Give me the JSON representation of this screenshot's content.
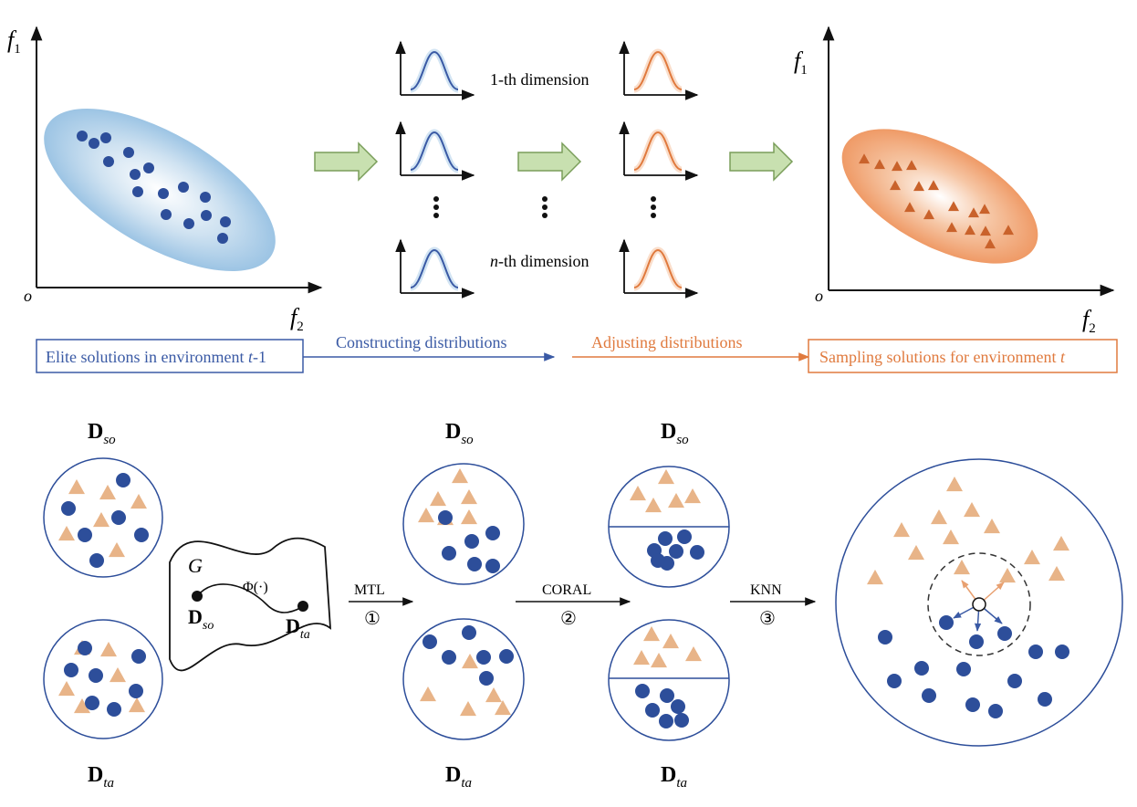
{
  "top": {
    "left_plot": {
      "y_axis_var": "f",
      "y_axis_sub": "1",
      "x_axis_var": "f",
      "x_axis_sub": "2",
      "origin": "o"
    },
    "right_plot": {
      "y_axis_var": "f",
      "y_axis_sub": "1",
      "x_axis_var": "f",
      "x_axis_sub": "2",
      "origin": "o"
    },
    "dimension_labels": {
      "first": "1-th dimension",
      "last_var": "n",
      "last_rest": "-th dimension"
    },
    "steps": {
      "box1_prefix": "Elite solutions in environment ",
      "box1_var": "t",
      "box1_suffix": "-1",
      "constructing": "Constructing distributions",
      "adjusting": "Adjusting distributions",
      "box2_prefix": "Sampling solutions for  environment ",
      "box2_var": "t"
    },
    "colors": {
      "blue_marker": "#2d4e9a",
      "orange_marker": "#c9622b",
      "blue_line": "#3a5aa5",
      "orange_line": "#e07a3e",
      "arrow_fill": "#c8e0b0",
      "arrow_stroke": "#7a9e5a"
    }
  },
  "bottom": {
    "source_label": {
      "main": "D",
      "sub": "so"
    },
    "target_label": {
      "main": "D",
      "sub": "ta"
    },
    "manifold": {
      "name": "G",
      "phi": "Φ(·)",
      "start_main": "D",
      "start_sub": "so",
      "end_main": "D",
      "end_sub": "ta"
    },
    "mtl": {
      "label": "MTL",
      "step": "①"
    },
    "coral": {
      "label": "CORAL",
      "step": "②"
    },
    "knn": {
      "label": "KNN",
      "step": "③"
    },
    "colors": {
      "triangle": "#e8b488",
      "circle": "#2d4e9a",
      "circle_stroke": "#2d4e9a"
    }
  }
}
